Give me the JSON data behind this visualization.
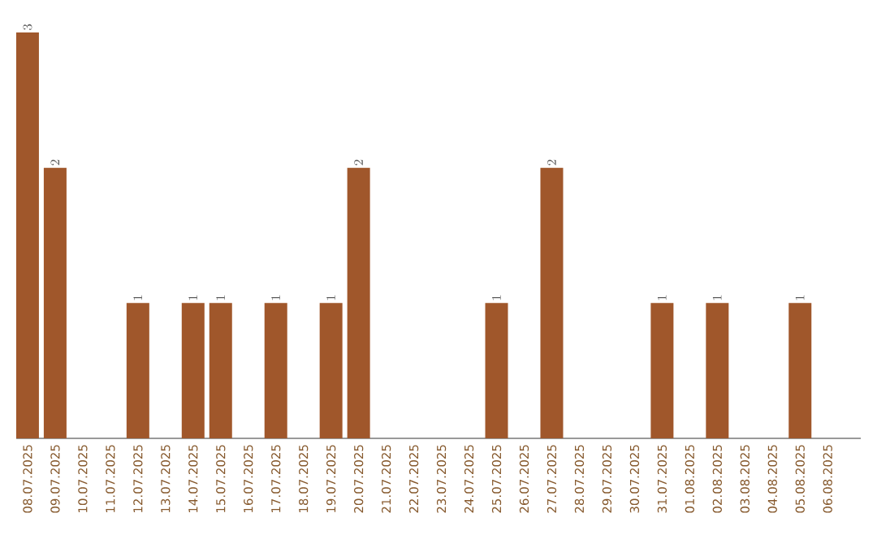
{
  "chart_data": {
    "type": "bar",
    "categories": [
      "08.07.2025",
      "09.07.2025",
      "10.07.2025",
      "11.07.2025",
      "12.07.2025",
      "13.07.2025",
      "14.07.2025",
      "15.07.2025",
      "16.07.2025",
      "17.07.2025",
      "18.07.2025",
      "19.07.2025",
      "20.07.2025",
      "21.07.2025",
      "22.07.2025",
      "23.07.2025",
      "24.07.2025",
      "25.07.2025",
      "26.07.2025",
      "27.07.2025",
      "28.07.2025",
      "29.07.2025",
      "30.07.2025",
      "31.07.2025",
      "01.08.2025",
      "02.08.2025",
      "03.08.2025",
      "04.08.2025",
      "05.08.2025",
      "06.08.2025"
    ],
    "values": [
      3,
      2,
      null,
      null,
      1,
      null,
      1,
      1,
      null,
      1,
      null,
      1,
      2,
      null,
      null,
      null,
      null,
      1,
      null,
      2,
      null,
      null,
      null,
      1,
      null,
      1,
      null,
      null,
      1,
      null
    ],
    "color": "#a0572b",
    "data_labels": true,
    "tick_labels": "x"
  }
}
